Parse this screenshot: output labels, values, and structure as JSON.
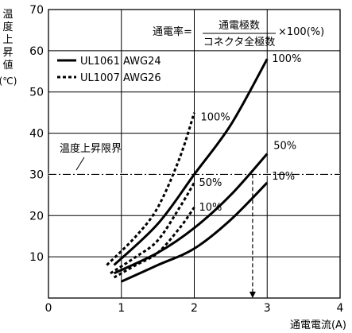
{
  "chart_data": {
    "type": "line",
    "ylabel_chars": [
      "温",
      "度",
      "上",
      "昇",
      "値"
    ],
    "yunit": "(℃)",
    "xlabel": "通電電流(A)",
    "xlim": [
      0,
      4
    ],
    "ylim": [
      0,
      70
    ],
    "xticks": [
      "0",
      "1",
      "2",
      "3",
      "4"
    ],
    "yticks": [
      "10",
      "20",
      "30",
      "40",
      "50",
      "60",
      "70"
    ],
    "grid": true,
    "formula": {
      "lhs": "通電率=",
      "numerator": "通電極数",
      "denominator": "コネクタ全極数",
      "rhs": "×100(%)"
    },
    "legend": [
      {
        "label": "UL1061  AWG24",
        "style": "solid"
      },
      {
        "label": "UL1007  AWG26",
        "style": "dashed"
      }
    ],
    "threshold": {
      "y": 30,
      "label": "温度上昇限界"
    },
    "marker": {
      "x": 2.8,
      "from_y": 30,
      "to_y": 0
    },
    "series": [
      {
        "name": "UL1061 AWG24 10%",
        "style": "solid",
        "label": "10%",
        "x": [
          1,
          1.5,
          2,
          2.5,
          3
        ],
        "y": [
          4,
          8,
          12,
          19,
          28
        ]
      },
      {
        "name": "UL1061 AWG24 50%",
        "style": "solid",
        "label": "50%",
        "x": [
          0.9,
          1.5,
          2,
          2.5,
          3
        ],
        "y": [
          6,
          11,
          17,
          25,
          35
        ]
      },
      {
        "name": "UL1061 AWG24 100%",
        "style": "solid",
        "label": "100%",
        "x": [
          0.9,
          1.5,
          2,
          2.5,
          3
        ],
        "y": [
          8,
          18,
          30,
          42,
          58
        ]
      },
      {
        "name": "UL1007 AWG26 10%",
        "style": "dashed",
        "label": "10%",
        "x": [
          0.9,
          1.2,
          1.5,
          1.8,
          2
        ],
        "y": [
          5,
          8,
          11,
          17,
          22
        ]
      },
      {
        "name": "UL1007 AWG26 50%",
        "style": "dashed",
        "label": "50%",
        "x": [
          0.85,
          1.2,
          1.5,
          1.8,
          2
        ],
        "y": [
          6,
          10,
          14,
          22,
          28
        ]
      },
      {
        "name": "UL1007 AWG26 100%",
        "style": "dashed",
        "label": "100%",
        "x": [
          0.8,
          1.2,
          1.5,
          1.8,
          2
        ],
        "y": [
          8,
          15,
          22,
          34,
          45
        ]
      }
    ]
  }
}
